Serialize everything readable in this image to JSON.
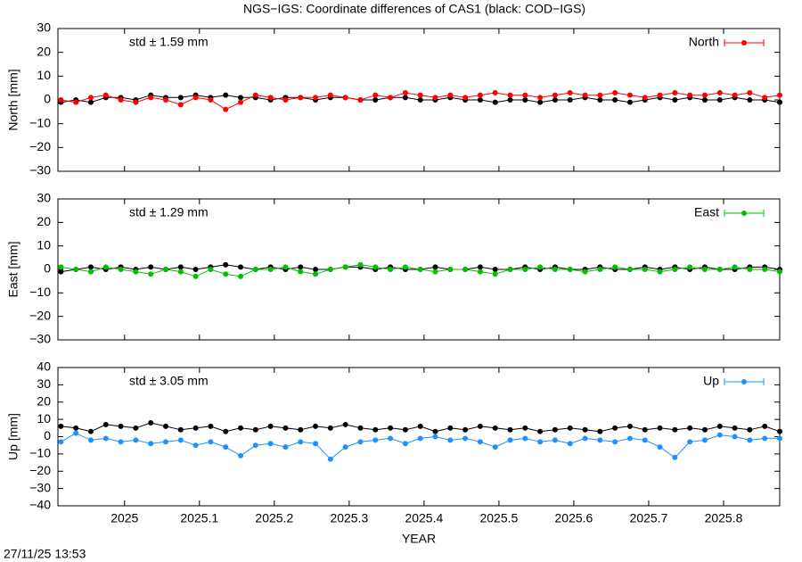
{
  "title": "NGS−IGS: Coordinate differences of CAS1 (black: COD−IGS)",
  "timestamp": "27/11/25 13:53",
  "chart_data": [
    {
      "type": "line",
      "ylabel": "North [mm]",
      "annotation": "std ± 1.59 mm",
      "legend": "upper right",
      "xtick_labels": false,
      "xlim": [
        2024.911,
        2025.875
      ],
      "xticks": [
        2025,
        2025.1,
        2025.2,
        2025.3,
        2025.4,
        2025.5,
        2025.6,
        2025.7,
        2025.8
      ],
      "ylim": [
        -30,
        30
      ],
      "yticks": [
        {
          "value": -30,
          "label": "−30"
        },
        {
          "value": -20,
          "label": "−20"
        },
        {
          "value": -10,
          "label": "−10"
        },
        0,
        10,
        20,
        30
      ],
      "x": [
        2024.915,
        2024.935,
        2024.955,
        2024.975,
        2024.995,
        2025.015,
        2025.035,
        2025.055,
        2025.075,
        2025.095,
        2025.115,
        2025.135,
        2025.155,
        2025.175,
        2025.195,
        2025.215,
        2025.235,
        2025.255,
        2025.275,
        2025.295,
        2025.315,
        2025.335,
        2025.355,
        2025.375,
        2025.395,
        2025.415,
        2025.435,
        2025.455,
        2025.475,
        2025.495,
        2025.515,
        2025.535,
        2025.555,
        2025.575,
        2025.595,
        2025.615,
        2025.635,
        2025.655,
        2025.675,
        2025.695,
        2025.715,
        2025.735,
        2025.755,
        2025.775,
        2025.795,
        2025.815,
        2025.835,
        2025.855,
        2025.875
      ],
      "series": [
        {
          "color": "#000000",
          "values": [
            -1,
            0,
            -1,
            1,
            1,
            0,
            2,
            1,
            1,
            2,
            1,
            2,
            1,
            1,
            0,
            1,
            1,
            0,
            1,
            1,
            0,
            0,
            1,
            1,
            0,
            0,
            1,
            0,
            0,
            -1,
            0,
            0,
            -1,
            0,
            0,
            1,
            0,
            0,
            -1,
            0,
            1,
            0,
            1,
            0,
            0,
            1,
            0,
            0,
            -1
          ]
        },
        {
          "name": "North",
          "color": "#ff0000",
          "values": [
            0,
            -1,
            1,
            2,
            0,
            -1,
            1,
            0,
            -2,
            1,
            0,
            -4,
            -1,
            2,
            1,
            0,
            1,
            1,
            2,
            1,
            0,
            2,
            1,
            3,
            2,
            1,
            2,
            1,
            2,
            3,
            2,
            2,
            1,
            2,
            3,
            2,
            2,
            3,
            2,
            1,
            2,
            3,
            2,
            2,
            3,
            2,
            3,
            1,
            2
          ]
        }
      ]
    },
    {
      "type": "line",
      "ylabel": "East [mm]",
      "annotation": "std ± 1.29 mm",
      "legend": "upper right",
      "xtick_labels": false,
      "xlim": [
        2024.911,
        2025.875
      ],
      "xticks": [
        2025,
        2025.1,
        2025.2,
        2025.3,
        2025.4,
        2025.5,
        2025.6,
        2025.7,
        2025.8
      ],
      "ylim": [
        -30,
        30
      ],
      "yticks": [
        {
          "value": -30,
          "label": "−30"
        },
        {
          "value": -20,
          "label": "−20"
        },
        {
          "value": -10,
          "label": "−10"
        },
        0,
        10,
        20,
        30
      ],
      "x": [
        2024.915,
        2024.935,
        2024.955,
        2024.975,
        2024.995,
        2025.015,
        2025.035,
        2025.055,
        2025.075,
        2025.095,
        2025.115,
        2025.135,
        2025.155,
        2025.175,
        2025.195,
        2025.215,
        2025.235,
        2025.255,
        2025.275,
        2025.295,
        2025.315,
        2025.335,
        2025.355,
        2025.375,
        2025.395,
        2025.415,
        2025.435,
        2025.455,
        2025.475,
        2025.495,
        2025.515,
        2025.535,
        2025.555,
        2025.575,
        2025.595,
        2025.615,
        2025.635,
        2025.655,
        2025.675,
        2025.695,
        2025.715,
        2025.735,
        2025.755,
        2025.775,
        2025.795,
        2025.815,
        2025.835,
        2025.855,
        2025.875
      ],
      "series": [
        {
          "color": "#000000",
          "values": [
            -1,
            0,
            1,
            0,
            1,
            0,
            1,
            0,
            1,
            0,
            1,
            2,
            1,
            0,
            1,
            0,
            1,
            0,
            0,
            1,
            1,
            0,
            1,
            0,
            0,
            1,
            0,
            0,
            1,
            0,
            0,
            1,
            0,
            1,
            0,
            0,
            1,
            0,
            0,
            1,
            0,
            1,
            0,
            1,
            0,
            0,
            1,
            1,
            0
          ]
        },
        {
          "name": "East",
          "color": "#00c000",
          "values": [
            1,
            0,
            -1,
            1,
            0,
            -1,
            -2,
            0,
            -1,
            -3,
            0,
            -2,
            -3,
            0,
            0,
            1,
            -1,
            -2,
            0,
            1,
            2,
            1,
            0,
            1,
            0,
            -1,
            0,
            0,
            -1,
            -2,
            0,
            0,
            1,
            0,
            0,
            -1,
            0,
            1,
            0,
            0,
            -1,
            0,
            1,
            0,
            0,
            1,
            0,
            0,
            -1
          ]
        }
      ]
    },
    {
      "type": "line",
      "ylabel": "Up [mm]",
      "xlabel": "YEAR",
      "annotation": "std ± 3.05 mm",
      "legend": "upper right",
      "xtick_labels": true,
      "xlim": [
        2024.911,
        2025.875
      ],
      "xticks": [
        2025,
        2025.1,
        2025.2,
        2025.3,
        2025.4,
        2025.5,
        2025.6,
        2025.7,
        2025.8
      ],
      "ylim": [
        -40,
        40
      ],
      "yticks": [
        {
          "value": -40,
          "label": "−40"
        },
        {
          "value": -30,
          "label": "−30"
        },
        {
          "value": -20,
          "label": "−20"
        },
        {
          "value": -10,
          "label": "−10"
        },
        0,
        10,
        20,
        30,
        40
      ],
      "x": [
        2024.915,
        2024.935,
        2024.955,
        2024.975,
        2024.995,
        2025.015,
        2025.035,
        2025.055,
        2025.075,
        2025.095,
        2025.115,
        2025.135,
        2025.155,
        2025.175,
        2025.195,
        2025.215,
        2025.235,
        2025.255,
        2025.275,
        2025.295,
        2025.315,
        2025.335,
        2025.355,
        2025.375,
        2025.395,
        2025.415,
        2025.435,
        2025.455,
        2025.475,
        2025.495,
        2025.515,
        2025.535,
        2025.555,
        2025.575,
        2025.595,
        2025.615,
        2025.635,
        2025.655,
        2025.675,
        2025.695,
        2025.715,
        2025.735,
        2025.755,
        2025.775,
        2025.795,
        2025.815,
        2025.835,
        2025.855,
        2025.875
      ],
      "series": [
        {
          "color": "#000000",
          "values": [
            6,
            5,
            3,
            7,
            6,
            5,
            8,
            6,
            4,
            5,
            6,
            3,
            5,
            4,
            6,
            5,
            4,
            6,
            5,
            7,
            5,
            4,
            5,
            4,
            6,
            3,
            5,
            4,
            6,
            5,
            4,
            5,
            3,
            4,
            5,
            4,
            3,
            5,
            6,
            4,
            5,
            4,
            5,
            4,
            6,
            5,
            4,
            6,
            3
          ]
        },
        {
          "name": "Up",
          "color": "#1e90ff",
          "values": [
            -3,
            2,
            -2,
            -1,
            -3,
            -2,
            -4,
            -3,
            -2,
            -5,
            -3,
            -6,
            -11,
            -5,
            -4,
            -6,
            -3,
            -4,
            -13,
            -6,
            -3,
            -2,
            -1,
            -4,
            -1,
            0,
            -2,
            -1,
            -3,
            -6,
            -2,
            -1,
            -3,
            -2,
            -4,
            -1,
            -2,
            -3,
            -1,
            -2,
            -6,
            -12,
            -3,
            -2,
            1,
            0,
            -2,
            -1,
            -1
          ]
        }
      ]
    }
  ]
}
